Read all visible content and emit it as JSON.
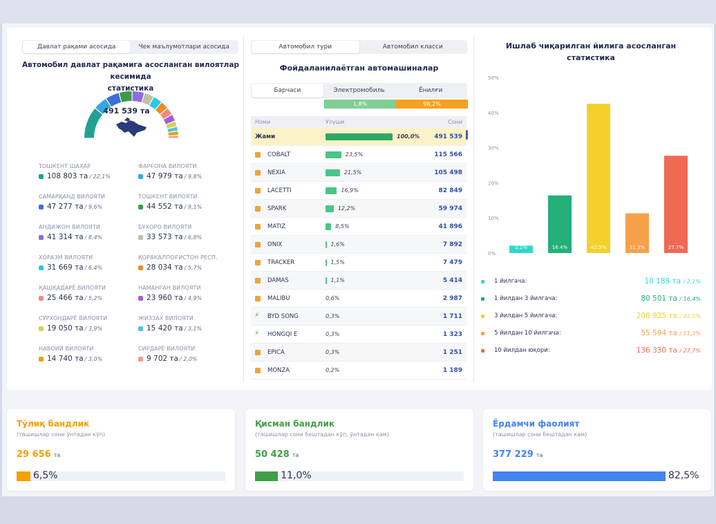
{
  "left": {
    "tabs": [
      {
        "label": "Давлат рақами асосида",
        "active": true
      },
      {
        "label": "Чек маълумотлари асосида",
        "active": false
      }
    ],
    "title_line1": "Автомобил давлат рақамига асосланган вилоятлар кесимида",
    "title_line2": "статистика",
    "total": "491 539 та",
    "regions": [
      {
        "name": "ТОШКЕНТ ШАҲАР",
        "value": "108 803 та",
        "pct": "/ 22,1%",
        "share": 22.1,
        "color": "#21a193"
      },
      {
        "name": "ФАРҒОНА ВИЛОЯТИ",
        "value": "47 979 та",
        "pct": "/ 9,8%",
        "share": 9.8,
        "color": "#35a7e0"
      },
      {
        "name": "САМАРҚАНД ВИЛОЯТИ",
        "value": "47 277 та",
        "pct": "/ 9,6%",
        "share": 9.6,
        "color": "#3b6fd8"
      },
      {
        "name": "ТОШКЕНТ ВИЛОЯТИ",
        "value": "44 552 та",
        "pct": "/ 9,1%",
        "share": 9.1,
        "color": "#3c9a4f"
      },
      {
        "name": "АНДИЖОН ВИЛОЯТИ",
        "value": "41 314 та",
        "pct": "/ 8,4%",
        "share": 8.4,
        "color": "#8f6be0"
      },
      {
        "name": "БУХОРО ВИЛОЯТИ",
        "value": "33 573 та",
        "pct": "/ 6,8%",
        "share": 6.8,
        "color": "#c3bfa6"
      },
      {
        "name": "ХОРАЗМ ВИЛОЯТИ",
        "value": "31 669 та",
        "pct": "/ 6,4%",
        "share": 6.4,
        "color": "#26c9e6"
      },
      {
        "name": "ҚОРАҚАЛПОҒИСТОН РЕСП.",
        "value": "28 034 та",
        "pct": "/ 5,7%",
        "share": 5.7,
        "color": "#f08a24"
      },
      {
        "name": "ҚАШҚАДАРЁ ВИЛОЯТИ",
        "value": "25 466 та",
        "pct": "/ 5,2%",
        "share": 5.2,
        "color": "#f08a84"
      },
      {
        "name": "НАМАНГАН ВИЛОЯТИ",
        "value": "23 960 та",
        "pct": "/ 4,9%",
        "share": 4.9,
        "color": "#a15ed6"
      },
      {
        "name": "СУРХОНДАРЁ ВИЛОЯТИ",
        "value": "19 050 та",
        "pct": "/ 3,9%",
        "share": 3.9,
        "color": "#d6d15a"
      },
      {
        "name": "ЖИЗЗАХ ВИЛОЯТИ",
        "value": "15 420 та",
        "pct": "/ 3,1%",
        "share": 3.1,
        "color": "#4cc7d9"
      },
      {
        "name": "НАВОИЙ ВИЛОЯТИ",
        "value": "14 740 та",
        "pct": "/ 3,0%",
        "share": 3.0,
        "color": "#e8a01a"
      },
      {
        "name": "СИРДАРЁ ВИЛОЯТИ",
        "value": "9 702 та",
        "pct": "/ 2,0%",
        "share": 2.0,
        "color": "#f29c8c"
      }
    ]
  },
  "middle": {
    "tabs": [
      {
        "label": "Автомобил тури",
        "active": true
      },
      {
        "label": "Автомобил класси",
        "active": false
      }
    ],
    "title": "Фойдаланилаётган автомашиналар",
    "subtabs": [
      {
        "label": "Барчаси",
        "active": true
      },
      {
        "label": "Электромобиль",
        "active": false
      },
      {
        "label": "Ёнилғи",
        "active": false
      }
    ],
    "electric_pct": "1,8%",
    "fuel_pct": "98,2%",
    "electric_share": 1.8,
    "fuel_share": 98.2,
    "columns": [
      "Номи",
      "Улуши",
      "Сони"
    ],
    "rows": [
      {
        "name": "Жами",
        "pct": "100,0%",
        "share": 100.0,
        "count": "491 539",
        "total": true
      },
      {
        "name": "COBALT",
        "pct": "23,5%",
        "share": 23.5,
        "count": "115 566",
        "type": "fuel"
      },
      {
        "name": "NEXIA",
        "pct": "21,5%",
        "share": 21.5,
        "count": "105 498",
        "type": "fuel"
      },
      {
        "name": "LACETTI",
        "pct": "16,9%",
        "share": 16.9,
        "count": "82 849",
        "type": "fuel"
      },
      {
        "name": "SPARK",
        "pct": "12,2%",
        "share": 12.2,
        "count": "59 974",
        "type": "fuel"
      },
      {
        "name": "MATIZ",
        "pct": "8,5%",
        "share": 8.5,
        "count": "41 896",
        "type": "fuel"
      },
      {
        "name": "ONIX",
        "pct": "1,6%",
        "share": 1.6,
        "count": "7 892",
        "type": "fuel"
      },
      {
        "name": "TRACKER",
        "pct": "1,5%",
        "share": 1.5,
        "count": "7 479",
        "type": "fuel"
      },
      {
        "name": "DAMAS",
        "pct": "1,1%",
        "share": 1.1,
        "count": "5 414",
        "type": "fuel"
      },
      {
        "name": "MALIBU",
        "pct": "0,6%",
        "share": 0.6,
        "count": "2 987",
        "type": "fuel"
      },
      {
        "name": "BYD SONG",
        "pct": "0,3%",
        "share": 0.3,
        "count": "1 711",
        "type": "electric"
      },
      {
        "name": "HONGQI E",
        "pct": "0,3%",
        "share": 0.3,
        "count": "1 323",
        "type": "electric"
      },
      {
        "name": "EPICA",
        "pct": "0,3%",
        "share": 0.3,
        "count": "1 251",
        "type": "fuel"
      },
      {
        "name": "MONZA",
        "pct": "0,2%",
        "share": 0.2,
        "count": "1 189",
        "type": "fuel"
      }
    ]
  },
  "right": {
    "title": "Ишлаб чиқарилган йилига асосланган статистика"
  },
  "chart_data": {
    "type": "bar",
    "title": "Ишлаб чиқарилган йилига асосланган статистика",
    "categories": [
      "1 йилгача:",
      "1 йилдан 3 йилгача:",
      "3 йилдан 5 йилгача:",
      "5 йилдан 10 йилгача:",
      "10 йилдан юқори:"
    ],
    "values": [
      2.1,
      16.4,
      42.5,
      11.3,
      27.7
    ],
    "data_labels": [
      "2,1%",
      "16.4%",
      "42.5%",
      "11.3%",
      "27.7%"
    ],
    "counts": [
      "10 189 та",
      "80 501 та",
      "208 925 та",
      "55 594 та",
      "136 330 та"
    ],
    "pcts": [
      "/ 2,1%",
      "/ 16,4%",
      "/ 42,5%",
      "/ 11,3%",
      "/ 27,7%"
    ],
    "colors": [
      "#2fd9cf",
      "#23b07a",
      "#f5d02c",
      "#f6a149",
      "#ee6a54"
    ],
    "ylim": [
      0,
      50
    ],
    "yticks": [
      0,
      10,
      20,
      30,
      40,
      50
    ],
    "yticklabels": [
      "0%",
      "10%",
      "20%",
      "30%",
      "40%",
      "50%"
    ],
    "grid": false,
    "xlabel": "",
    "ylabel": ""
  },
  "cards": [
    {
      "title": "Тўлиқ бандлик",
      "subtitle": "(ташишлар сони ўнтадан кўп)",
      "value": "29 656",
      "unit": "та",
      "pct": "6,5%",
      "share": 6.5,
      "color": "#f5a000"
    },
    {
      "title": "Қисман бандлик",
      "subtitle": "(ташишлар сони бештадан кўп, ўнтадан кам)",
      "value": "50 428",
      "unit": "та",
      "pct": "11,0%",
      "share": 11.0,
      "color": "#3f9f45"
    },
    {
      "title": "Ёрдамчи фаолият",
      "subtitle": "(ташишлар сони бештадан кам)",
      "value": "377 229",
      "unit": "та",
      "pct": "82,5%",
      "share": 82.5,
      "color": "#4384ee"
    }
  ]
}
